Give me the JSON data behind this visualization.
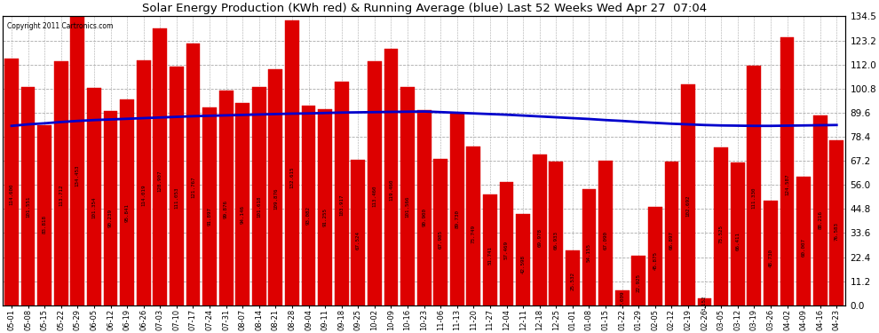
{
  "title": "Solar Energy Production (KWh red) & Running Average (blue) Last 52 Weeks Wed Apr 27  07:04",
  "copyright": "Copyright 2011 Cartronics.com",
  "bar_color": "#DD0000",
  "avg_line_color": "#0000CC",
  "background_color": "#FFFFFF",
  "plot_bg_color": "#FFFFFF",
  "grid_color": "#AAAAAA",
  "ylabel_right": [
    "0.0",
    "11.2",
    "22.4",
    "33.6",
    "44.8",
    "56.0",
    "67.2",
    "78.4",
    "89.6",
    "100.8",
    "112.0",
    "123.2",
    "134.5"
  ],
  "ylim": [
    0,
    134.5
  ],
  "yticks": [
    0.0,
    11.2,
    22.4,
    33.6,
    44.8,
    56.0,
    67.2,
    78.4,
    89.6,
    100.8,
    112.0,
    123.2,
    134.5
  ],
  "categories": [
    "05-01",
    "05-08",
    "05-15",
    "05-22",
    "05-29",
    "06-05",
    "06-12",
    "06-19",
    "06-26",
    "07-03",
    "07-10",
    "07-17",
    "07-24",
    "07-31",
    "08-07",
    "08-14",
    "08-21",
    "08-28",
    "09-04",
    "09-11",
    "09-18",
    "09-25",
    "10-02",
    "10-09",
    "10-16",
    "10-23",
    "11-06",
    "11-13",
    "11-20",
    "11-27",
    "12-04",
    "12-11",
    "12-18",
    "12-25",
    "01-01",
    "01-08",
    "01-15",
    "01-22",
    "01-29",
    "02-05",
    "02-12",
    "02-19",
    "02-26",
    "03-05",
    "03-12",
    "03-19",
    "03-26",
    "04-02",
    "04-09",
    "04-16",
    "04-23"
  ],
  "values": [
    114.6,
    101.551,
    83.818,
    113.712,
    134.453,
    101.354,
    90.239,
    95.841,
    114.019,
    128.907,
    111.053,
    121.767,
    91.897,
    99.876,
    94.146,
    101.618,
    109.876,
    132.615,
    93.082,
    91.255,
    103.917,
    67.524,
    113.46,
    119.46,
    101.566,
    90.9,
    67.985,
    89.73,
    73.749,
    51.741,
    57.469,
    42.598,
    69.978,
    66.933,
    25.532,
    54.155,
    67.09,
    7.009,
    22.925,
    45.875,
    66.897,
    102.692,
    3.152,
    73.525,
    66.411,
    111.33,
    48.73,
    124.587,
    60.007,
    88.216,
    76.583
  ],
  "running_avg": [
    83.5,
    84.2,
    84.7,
    85.3,
    85.8,
    86.2,
    86.5,
    86.8,
    87.1,
    87.4,
    87.7,
    88.0,
    88.2,
    88.4,
    88.6,
    88.8,
    89.0,
    89.2,
    89.3,
    89.5,
    89.7,
    89.8,
    89.9,
    90.0,
    90.1,
    90.2,
    89.9,
    89.6,
    89.3,
    89.0,
    88.7,
    88.3,
    87.9,
    87.5,
    87.1,
    86.7,
    86.2,
    85.8,
    85.3,
    84.9,
    84.5,
    84.2,
    83.9,
    83.7,
    83.6,
    83.5,
    83.5,
    83.6,
    83.7,
    83.8,
    83.9
  ]
}
